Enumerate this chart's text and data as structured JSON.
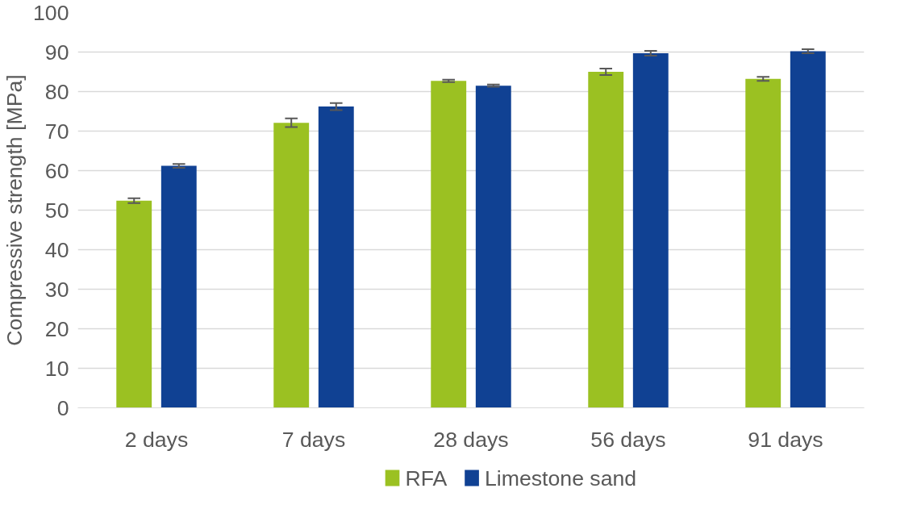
{
  "chart_data": {
    "type": "bar",
    "ylabel": "Compressive strength [MPa]",
    "categories": [
      "2 days",
      "7 days",
      "28 days",
      "56 days",
      "91 days"
    ],
    "series": [
      {
        "name": "RFA",
        "color": "#9bc122",
        "values": [
          52.4,
          72.1,
          82.7,
          85.0,
          83.2
        ],
        "errors": [
          0.6,
          1.1,
          0.3,
          0.8,
          0.5
        ]
      },
      {
        "name": "Limestone sand",
        "color": "#104193",
        "values": [
          61.2,
          76.2,
          81.5,
          89.7,
          90.2
        ],
        "errors": [
          0.5,
          0.9,
          0.3,
          0.6,
          0.5
        ]
      }
    ],
    "ylim": [
      0,
      100
    ],
    "yticks": [
      0,
      10,
      20,
      30,
      40,
      50,
      60,
      70,
      80,
      90,
      100
    ],
    "grid": "y",
    "legend": "bottom"
  }
}
